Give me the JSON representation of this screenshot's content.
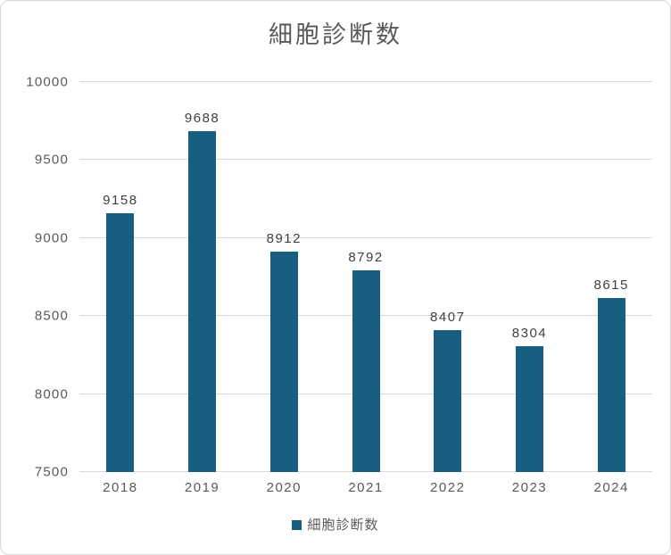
{
  "chart": {
    "colors": {
      "bar": "#175e81",
      "title_text": "#595959",
      "axis_text": "#595959",
      "value_label_text": "#404040",
      "gridline": "#d9d9d9",
      "border": "#d6d6d6"
    }
  },
  "chart_data": {
    "type": "bar",
    "title": "細胞診断数",
    "categories": [
      "2018",
      "2019",
      "2020",
      "2021",
      "2022",
      "2023",
      "2024"
    ],
    "values": [
      9158,
      9688,
      8912,
      8792,
      8407,
      8304,
      8615
    ],
    "xlabel": "",
    "ylabel": "",
    "ylim": [
      7500,
      10000
    ],
    "yticks": [
      7500,
      8000,
      8500,
      9000,
      9500,
      10000
    ],
    "grid": true,
    "legend": [
      "細胞診断数"
    ],
    "legend_position": "bottom"
  }
}
